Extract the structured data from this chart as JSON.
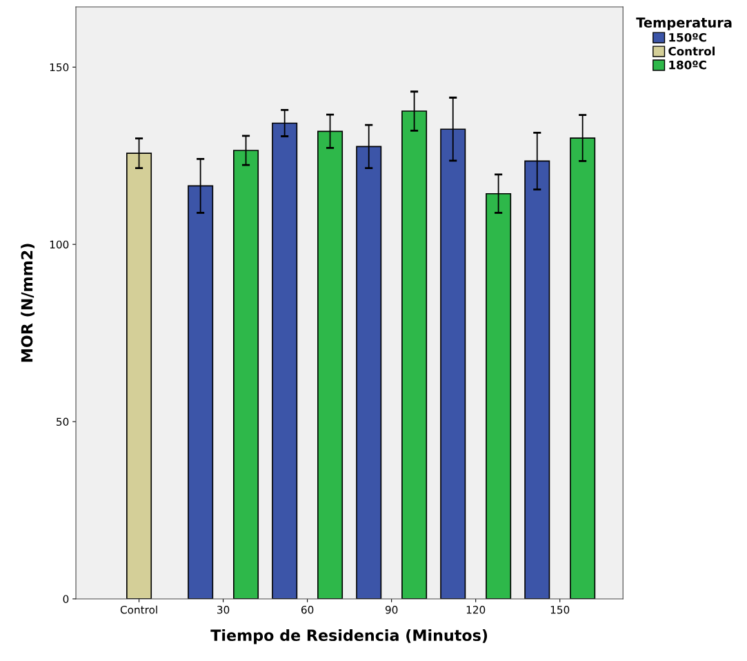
{
  "chart_data": {
    "type": "bar",
    "xlabel": "Tiempo de Residencia (Minutos)",
    "ylabel": "MOR (N/mm2)",
    "legend_title": "Temperatura",
    "categories": [
      "Control",
      "30",
      "60",
      "90",
      "120",
      "150"
    ],
    "series": [
      {
        "name": "150ºC",
        "color": "#3c55a8",
        "values": [
          null,
          116.5,
          134.2,
          127.6,
          132.5,
          123.5
        ],
        "errors": [
          null,
          7.6,
          3.7,
          6.1,
          8.9,
          8.0
        ]
      },
      {
        "name": "Control",
        "color": "#d4cf98",
        "values": [
          125.7,
          null,
          null,
          null,
          null,
          null
        ],
        "errors": [
          4.2,
          null,
          null,
          null,
          null,
          null
        ]
      },
      {
        "name": "180ºC",
        "color": "#2eb84a",
        "values": [
          null,
          126.5,
          131.9,
          137.6,
          114.3,
          130.0
        ],
        "errors": [
          null,
          4.1,
          4.7,
          5.5,
          5.4,
          6.5
        ]
      }
    ],
    "ylim": [
      0,
      167
    ],
    "yticks": [
      0,
      50,
      100,
      150
    ],
    "grid": false,
    "legend": "top right"
  }
}
